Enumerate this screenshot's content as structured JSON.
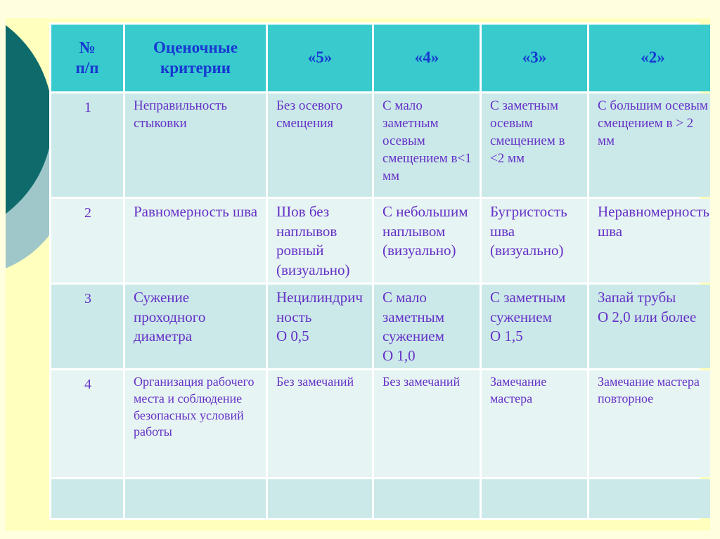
{
  "slide": {
    "kind": "presentation-slide",
    "colors": {
      "outer_frame": "#ffffe0",
      "slide_background": "#ffffbe",
      "header_background": "#38cacd",
      "header_text": "#1738d1",
      "body_text": "#6531c7",
      "row_odd_background": "#cbe9e9",
      "row_even_background": "#e6f4f3",
      "gridline": "#ffffff",
      "decoration_dark_circle": "#0f6b6b",
      "decoration_light_circle": "#9fc6c9"
    }
  },
  "table": {
    "headers": [
      "№\nп/п",
      "Оценочные критерии",
      "«5»",
      "«4»",
      "«3»",
      "«2»"
    ],
    "rows": [
      {
        "cells": [
          "1",
          "Неправильность стыковки",
          "Без осевого смещения",
          "С мало заметным осевым смещением в<1 мм",
          "С заметным осевым смещением в <2 мм",
          "С большим осевым смещением в > 2 мм"
        ]
      },
      {
        "cells": [
          "2",
          "Равномерность шва",
          "Шов без наплывов ровный (визуально)",
          "С небольшим наплывом (визуально)",
          "Бугристость шва (визуально)",
          "Неравномерность шва"
        ]
      },
      {
        "cells": [
          "3",
          "Сужение проходного диаметра",
          "Нецилиндричность\nО 0,5",
          "С мало заметным сужением\nО  1,0",
          "С заметным сужением\nО  1,5",
          "Запай трубы\nО 2,0 или более"
        ]
      },
      {
        "cells": [
          "4",
          "Организация рабочего места и соблюдение безопасных условий работы",
          "Без замечаний",
          "Без замечаний",
          "Замечание мастера",
          "Замечание мастера повторное"
        ]
      },
      {
        "cells": [
          "",
          "",
          "",
          "",
          "",
          ""
        ]
      }
    ]
  }
}
